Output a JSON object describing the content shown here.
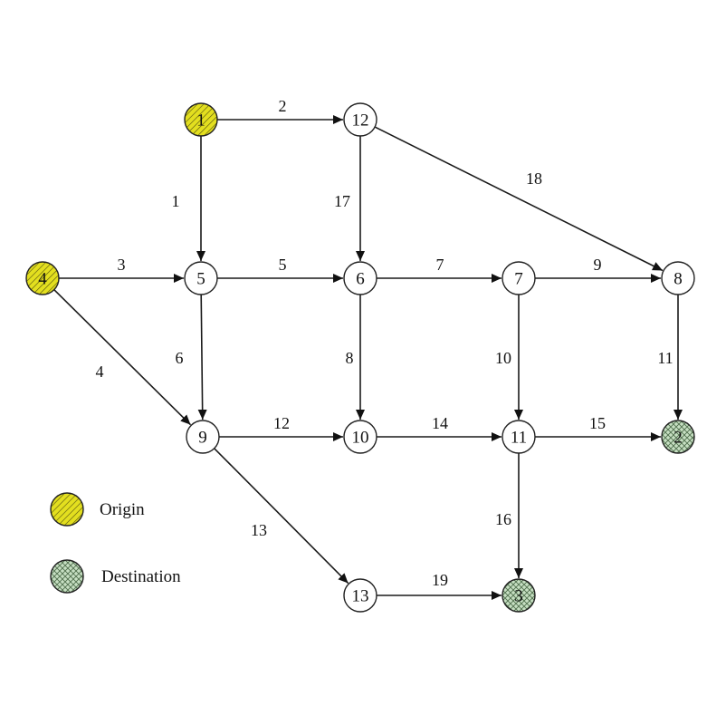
{
  "colors": {
    "origin_fill": "#e3df1f",
    "destination_fill": "#c6dfc2",
    "node_fill": "#ffffff",
    "stroke": "#222222"
  },
  "nodes": [
    {
      "id": "1",
      "type": "origin"
    },
    {
      "id": "2",
      "type": "destination"
    },
    {
      "id": "3",
      "type": "destination"
    },
    {
      "id": "4",
      "type": "origin"
    },
    {
      "id": "5",
      "type": "normal"
    },
    {
      "id": "6",
      "type": "normal"
    },
    {
      "id": "7",
      "type": "normal"
    },
    {
      "id": "8",
      "type": "normal"
    },
    {
      "id": "9",
      "type": "normal"
    },
    {
      "id": "10",
      "type": "normal"
    },
    {
      "id": "11",
      "type": "normal"
    },
    {
      "id": "12",
      "type": "normal"
    },
    {
      "id": "13",
      "type": "normal"
    }
  ],
  "edges": [
    {
      "label": "1",
      "from": "1",
      "to": "5"
    },
    {
      "label": "2",
      "from": "1",
      "to": "12"
    },
    {
      "label": "3",
      "from": "4",
      "to": "5"
    },
    {
      "label": "4",
      "from": "4",
      "to": "9"
    },
    {
      "label": "5",
      "from": "5",
      "to": "6"
    },
    {
      "label": "6",
      "from": "5",
      "to": "9"
    },
    {
      "label": "7",
      "from": "6",
      "to": "7"
    },
    {
      "label": "8",
      "from": "6",
      "to": "10"
    },
    {
      "label": "9",
      "from": "7",
      "to": "8"
    },
    {
      "label": "10",
      "from": "7",
      "to": "11"
    },
    {
      "label": "11",
      "from": "8",
      "to": "2"
    },
    {
      "label": "12",
      "from": "9",
      "to": "10"
    },
    {
      "label": "13",
      "from": "9",
      "to": "13"
    },
    {
      "label": "14",
      "from": "10",
      "to": "11"
    },
    {
      "label": "15",
      "from": "11",
      "to": "2"
    },
    {
      "label": "16",
      "from": "11",
      "to": "3"
    },
    {
      "label": "17",
      "from": "12",
      "to": "6"
    },
    {
      "label": "18",
      "from": "12",
      "to": "8"
    },
    {
      "label": "19",
      "from": "13",
      "to": "3"
    }
  ],
  "legend": {
    "origin_label": "Origin",
    "destination_label": "Destination"
  }
}
